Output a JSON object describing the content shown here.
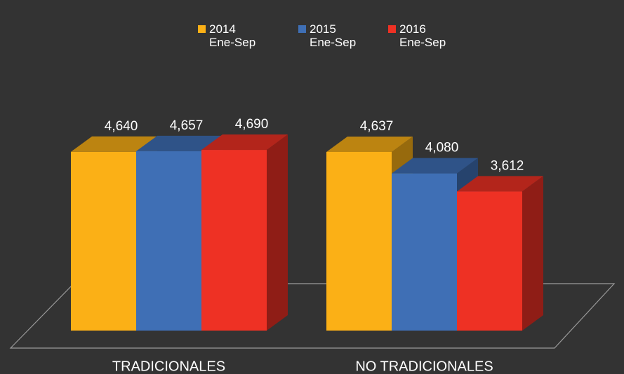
{
  "chart_data": {
    "type": "bar3d",
    "categories": [
      "TRADICIONALES",
      "NO TRADICIONALES"
    ],
    "series": [
      {
        "name": "2014\nEne-Sep",
        "color": "#fbb016",
        "values": [
          4640,
          4637
        ],
        "value_labels": [
          "4,640",
          "4,637"
        ]
      },
      {
        "name": "2015\nEne-Sep",
        "color": "#3f6fb5",
        "values": [
          4657,
          4080
        ],
        "value_labels": [
          "4,657",
          "4,080"
        ]
      },
      {
        "name": "2016\nEne-Sep",
        "color": "#ee3124",
        "values": [
          4690,
          3612
        ],
        "value_labels": [
          "4,690",
          "3,612"
        ]
      }
    ]
  }
}
